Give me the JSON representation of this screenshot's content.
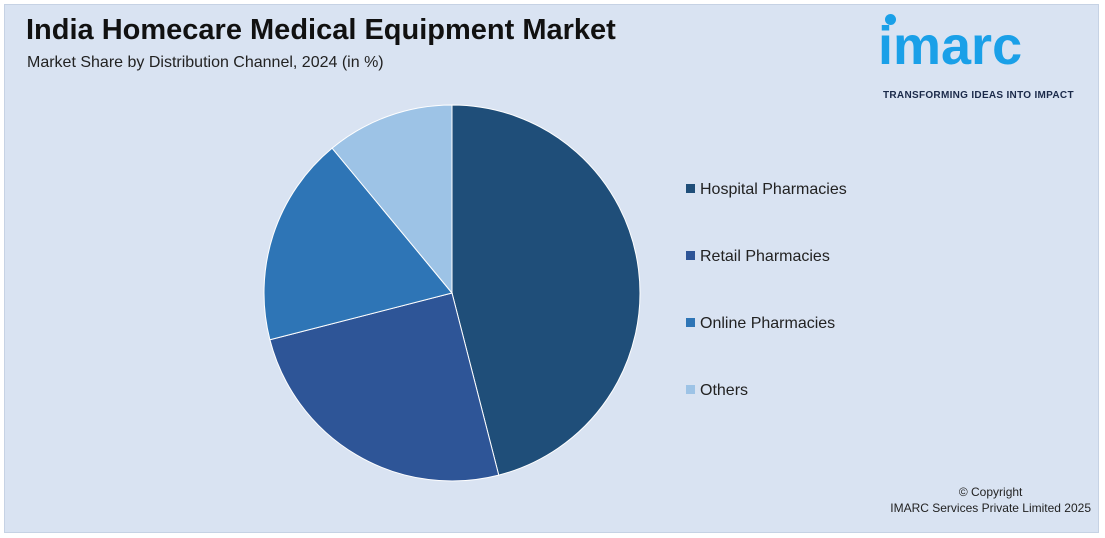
{
  "header": {
    "title": "India Homecare Medical Equipment Market",
    "subtitle": "Market Share by Distribution Channel, 2024 (in %)"
  },
  "logo": {
    "word": "imarc",
    "tagline": "TRANSFORMING IDEAS INTO IMPACT",
    "color": "#1aa0e8"
  },
  "footer": {
    "copyright_line1": "© Copyright",
    "copyright_line2": "IMARC Services Private Limited 2025"
  },
  "chart_data": {
    "type": "pie",
    "title": "India Homecare Medical Equipment Market",
    "subtitle": "Market Share by Distribution Channel, 2024 (in %)",
    "legend_placement": "right",
    "start_angle_deg": 0,
    "direction": "clockwise",
    "slices": [
      {
        "label": "Hospital Pharmacies",
        "value": 46,
        "color": "#1f4e79"
      },
      {
        "label": "Retail Pharmacies",
        "value": 25,
        "color": "#2e5597"
      },
      {
        "label": "Online Pharmacies",
        "value": 18,
        "color": "#2e75b6"
      },
      {
        "label": "Others",
        "value": 11,
        "color": "#9dc3e6"
      }
    ]
  }
}
